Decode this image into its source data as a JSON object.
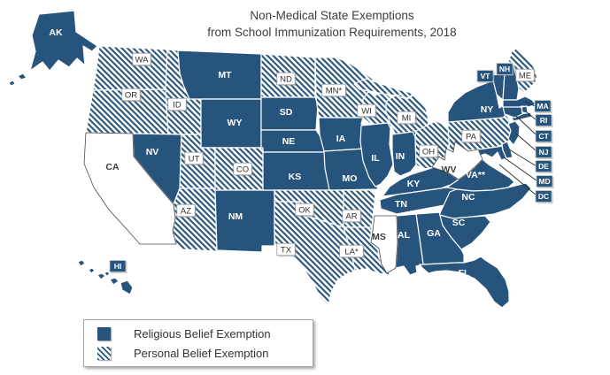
{
  "title": {
    "line1": "Non-Medical State Exemptions",
    "line2": "from School Immunization Requirements, 2018"
  },
  "legend": {
    "items": [
      {
        "id": "religious",
        "label": "Religious Belief Exemption",
        "swatch": "solid"
      },
      {
        "id": "personal",
        "label": "Personal Belief Exemption",
        "swatch": "hatched"
      }
    ]
  },
  "colors": {
    "exemption_blue": "#26547C",
    "no_exemption_fill": "#FFFFFF",
    "state_border": "#FFFFFF",
    "no_exemption_border": "#4A4A4A",
    "title_text": "#3D3D3D",
    "label_dark_text": "#3B3B3B",
    "label_box_border": "#9A9A9A",
    "leader_line": "#2B2B2B",
    "legend_border": "#A6A6A6",
    "legend_text": "#333333"
  },
  "states": [
    {
      "code": "AK",
      "label": "AK",
      "exemption": "religious"
    },
    {
      "code": "HI",
      "label": "HI",
      "exemption": "religious"
    },
    {
      "code": "WA",
      "label": "WA",
      "exemption": "personal"
    },
    {
      "code": "OR",
      "label": "OR",
      "exemption": "personal"
    },
    {
      "code": "CA",
      "label": "CA",
      "exemption": "none"
    },
    {
      "code": "ID",
      "label": "ID",
      "exemption": "personal"
    },
    {
      "code": "NV",
      "label": "NV",
      "exemption": "religious"
    },
    {
      "code": "UT",
      "label": "UT",
      "exemption": "personal"
    },
    {
      "code": "AZ",
      "label": "AZ",
      "exemption": "personal"
    },
    {
      "code": "MT",
      "label": "MT",
      "exemption": "religious"
    },
    {
      "code": "WY",
      "label": "WY",
      "exemption": "religious"
    },
    {
      "code": "CO",
      "label": "CO",
      "exemption": "personal"
    },
    {
      "code": "NM",
      "label": "NM",
      "exemption": "religious"
    },
    {
      "code": "ND",
      "label": "ND",
      "exemption": "personal"
    },
    {
      "code": "SD",
      "label": "SD",
      "exemption": "religious"
    },
    {
      "code": "NE",
      "label": "NE",
      "exemption": "religious"
    },
    {
      "code": "KS",
      "label": "KS",
      "exemption": "religious"
    },
    {
      "code": "OK",
      "label": "OK",
      "exemption": "personal"
    },
    {
      "code": "TX",
      "label": "TX",
      "exemption": "personal"
    },
    {
      "code": "MN",
      "label": "MN*",
      "exemption": "personal"
    },
    {
      "code": "IA",
      "label": "IA",
      "exemption": "religious"
    },
    {
      "code": "MO",
      "label": "MO",
      "exemption": "religious"
    },
    {
      "code": "AR",
      "label": "AR",
      "exemption": "personal"
    },
    {
      "code": "LA",
      "label": "LA*",
      "exemption": "personal"
    },
    {
      "code": "WI",
      "label": "WI",
      "exemption": "personal"
    },
    {
      "code": "IL",
      "label": "IL",
      "exemption": "religious"
    },
    {
      "code": "MI",
      "label": "MI",
      "exemption": "personal"
    },
    {
      "code": "IN",
      "label": "IN",
      "exemption": "religious"
    },
    {
      "code": "OH",
      "label": "OH",
      "exemption": "personal"
    },
    {
      "code": "KY",
      "label": "KY",
      "exemption": "religious"
    },
    {
      "code": "TN",
      "label": "TN",
      "exemption": "religious"
    },
    {
      "code": "MS",
      "label": "MS",
      "exemption": "none"
    },
    {
      "code": "AL",
      "label": "AL",
      "exemption": "religious"
    },
    {
      "code": "GA",
      "label": "GA",
      "exemption": "religious"
    },
    {
      "code": "FL",
      "label": "FL",
      "exemption": "religious"
    },
    {
      "code": "SC",
      "label": "SC",
      "exemption": "religious"
    },
    {
      "code": "NC",
      "label": "NC",
      "exemption": "religious"
    },
    {
      "code": "VA",
      "label": "VA**",
      "exemption": "religious"
    },
    {
      "code": "WV",
      "label": "WV",
      "exemption": "none"
    },
    {
      "code": "PA",
      "label": "PA",
      "exemption": "personal"
    },
    {
      "code": "NY",
      "label": "NY",
      "exemption": "religious"
    },
    {
      "code": "VT",
      "label": "VT",
      "exemption": "religious"
    },
    {
      "code": "NH",
      "label": "NH",
      "exemption": "religious"
    },
    {
      "code": "ME",
      "label": "ME",
      "exemption": "personal"
    },
    {
      "code": "MA",
      "label": "MA",
      "exemption": "religious"
    },
    {
      "code": "RI",
      "label": "RI",
      "exemption": "religious"
    },
    {
      "code": "CT",
      "label": "CT",
      "exemption": "religious"
    },
    {
      "code": "NJ",
      "label": "NJ",
      "exemption": "religious"
    },
    {
      "code": "DE",
      "label": "DE",
      "exemption": "religious"
    },
    {
      "code": "MD",
      "label": "MD",
      "exemption": "religious"
    },
    {
      "code": "DC",
      "label": "DC",
      "exemption": "religious"
    }
  ]
}
